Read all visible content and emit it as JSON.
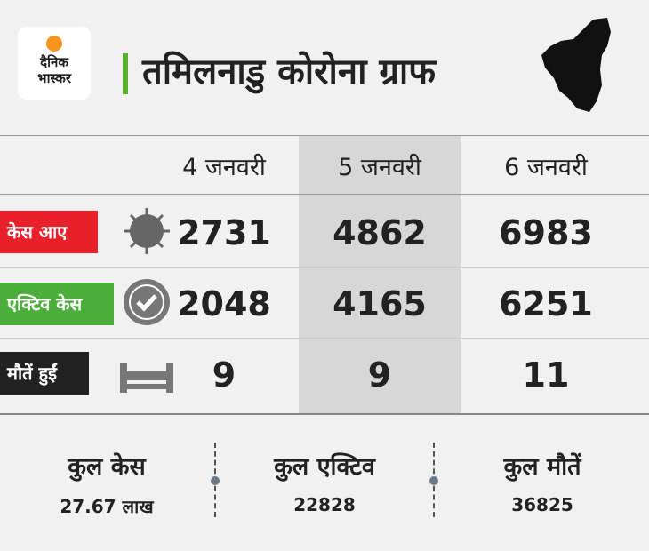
{
  "header": {
    "logo": [
      "दैनिक",
      "भास्कर"
    ],
    "title": "तमिलनाडु कोरोना ग्राफ"
  },
  "table": {
    "columns": [
      "4 जनवरी",
      "5 जनवरी",
      "6 जनवरी"
    ],
    "rows": [
      {
        "label": "केस आए",
        "values": [
          2731,
          4862,
          6983
        ]
      },
      {
        "label": "एक्टिव केस",
        "values": [
          2048,
          4165,
          6251
        ]
      },
      {
        "label": "मौतें हुईं",
        "values": [
          9,
          9,
          11
        ]
      }
    ]
  },
  "summary": [
    {
      "label": "कुल केस",
      "value": "27.67 लाख"
    },
    {
      "label": "कुल एक्टिव",
      "value": "22828"
    },
    {
      "label": "कुल मौतें",
      "value": "36825"
    }
  ]
}
